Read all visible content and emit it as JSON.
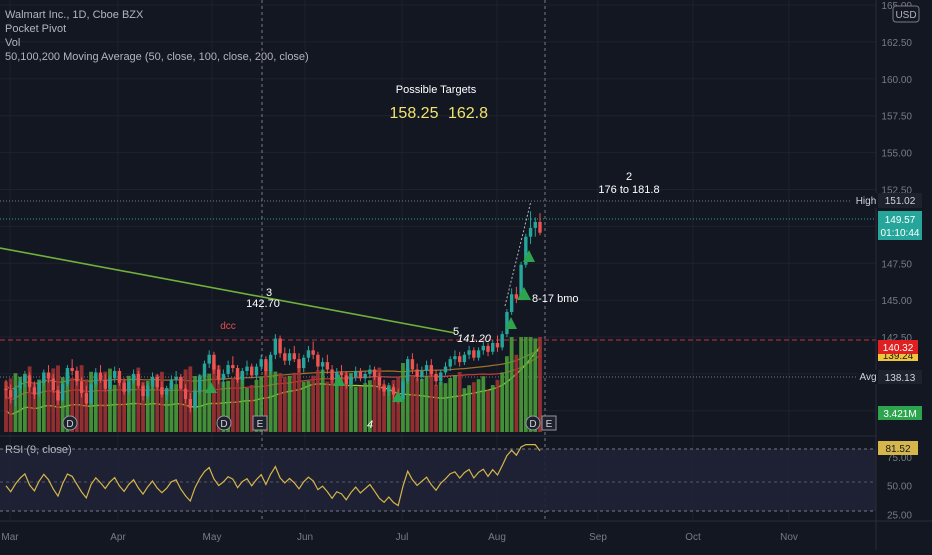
{
  "header": {
    "symbol_line": "Walmart Inc., 1D, Cboe BZX",
    "indicators": [
      "Pocket Pivot",
      "Vol",
      "50,100,200 Moving Average (50, close, 100, close, 200, close)"
    ],
    "currency_button": "USD"
  },
  "rsi_label": "RSI (9, close)",
  "chart_data": {
    "type": "candlestick",
    "symbol": "Walmart Inc.",
    "interval": "1D",
    "exchange": "Cboe BZX",
    "currency": "USD",
    "price_ylim": [
      136.2,
      164.8
    ],
    "price_ticks": [
      "165.00",
      "162.50",
      "160.00",
      "157.50",
      "155.00",
      "152.50",
      "150.00",
      "147.50",
      "145.00",
      "142.50",
      "140.00",
      "137.50"
    ],
    "x_labels": [
      "Mar",
      "Apr",
      "May",
      "Jun",
      "Jul",
      "Aug",
      "Sep",
      "Oct",
      "Nov"
    ],
    "price_readouts": {
      "high_label": "High",
      "high_value": "151.02",
      "last_value": "149.57",
      "countdown": "01:10:44",
      "red_value": "140.32",
      "yellow_value": "139.24",
      "avg_label": "Avg",
      "avg_value": "138.13",
      "volume_value": "3.421M",
      "rsi_value": "81.52"
    },
    "rsi_ticks": [
      "75.00",
      "50.00",
      "25.00"
    ],
    "rsi_ylim": [
      20,
      90
    ],
    "annotations": {
      "targets_title": "Possible Targets",
      "target_1": "158.25",
      "target_2": "162.8",
      "wave_2_label": "2",
      "wave_2_range": "176 to 181.8",
      "wave_3_label": "3",
      "wave_3_price": "142.70",
      "wave_5_label": "5",
      "wave_5_price": "141.20",
      "wave_4_label": "4",
      "dcc_label": "dcc",
      "bmo_label": "8-17 bmo"
    },
    "event_markers": [
      "D",
      "D",
      "E",
      "D",
      "E"
    ],
    "candles": [
      [
        139.0,
        139.6,
        138.3,
        138.9
      ],
      [
        138.9,
        139.3,
        138.0,
        138.4
      ],
      [
        138.4,
        139.2,
        137.8,
        139.0
      ],
      [
        139.0,
        139.8,
        138.7,
        139.5
      ],
      [
        139.5,
        140.2,
        139.1,
        139.9
      ],
      [
        139.9,
        140.1,
        138.8,
        139.1
      ],
      [
        139.1,
        139.5,
        138.3,
        138.6
      ],
      [
        138.6,
        139.6,
        138.4,
        139.4
      ],
      [
        139.4,
        140.3,
        139.2,
        140.1
      ],
      [
        140.1,
        140.6,
        139.4,
        139.7
      ],
      [
        139.7,
        140.0,
        138.7,
        138.9
      ],
      [
        138.9,
        139.2,
        137.9,
        138.2
      ],
      [
        138.2,
        139.5,
        138.1,
        139.3
      ],
      [
        139.3,
        140.6,
        139.1,
        140.4
      ],
      [
        140.4,
        141.0,
        139.9,
        140.2
      ],
      [
        140.2,
        140.5,
        139.2,
        139.5
      ],
      [
        139.5,
        139.8,
        138.4,
        138.7
      ],
      [
        138.7,
        139.2,
        137.8,
        138.0
      ],
      [
        138.0,
        139.5,
        137.9,
        139.3
      ],
      [
        139.3,
        140.4,
        139.1,
        140.1
      ],
      [
        140.1,
        140.6,
        139.4,
        139.6
      ],
      [
        139.6,
        140.0,
        138.8,
        139.0
      ],
      [
        139.0,
        139.9,
        138.7,
        139.7
      ],
      [
        139.7,
        140.5,
        139.4,
        140.2
      ],
      [
        140.2,
        140.4,
        139.2,
        139.4
      ],
      [
        139.4,
        139.7,
        138.6,
        138.8
      ],
      [
        138.8,
        139.7,
        138.6,
        139.5
      ],
      [
        139.5,
        140.3,
        139.3,
        140.0
      ],
      [
        140.0,
        140.2,
        139.0,
        139.2
      ],
      [
        139.2,
        139.4,
        138.2,
        138.5
      ],
      [
        138.5,
        139.4,
        138.3,
        139.2
      ],
      [
        139.2,
        140.1,
        139.0,
        139.8
      ],
      [
        139.8,
        140.0,
        138.9,
        139.1
      ],
      [
        139.1,
        139.5,
        138.4,
        138.6
      ],
      [
        138.6,
        139.2,
        138.2,
        139.0
      ],
      [
        139.0,
        139.9,
        138.8,
        139.6
      ],
      [
        139.6,
        140.2,
        139.3,
        139.8
      ],
      [
        139.8,
        140.0,
        138.9,
        139.0
      ],
      [
        139.0,
        139.3,
        138.0,
        138.3
      ],
      [
        138.3,
        138.7,
        137.4,
        137.7
      ],
      [
        137.7,
        139.0,
        137.5,
        138.8
      ],
      [
        138.8,
        140.0,
        138.6,
        139.8
      ],
      [
        139.8,
        140.9,
        139.6,
        140.7
      ],
      [
        140.7,
        141.6,
        140.4,
        141.3
      ],
      [
        141.3,
        141.5,
        140.0,
        140.3
      ],
      [
        140.3,
        140.6,
        139.3,
        139.6
      ],
      [
        139.6,
        140.3,
        139.1,
        140.0
      ],
      [
        140.0,
        140.9,
        139.8,
        140.6
      ],
      [
        140.6,
        141.2,
        140.1,
        140.4
      ],
      [
        140.4,
        140.6,
        139.4,
        139.6
      ],
      [
        139.6,
        140.4,
        139.3,
        140.2
      ],
      [
        140.2,
        140.9,
        139.9,
        140.5
      ],
      [
        140.5,
        140.7,
        139.7,
        139.9
      ],
      [
        139.9,
        140.7,
        139.6,
        140.5
      ],
      [
        140.5,
        141.3,
        140.2,
        141.0
      ],
      [
        141.0,
        141.2,
        139.9,
        140.2
      ],
      [
        140.2,
        141.5,
        140.0,
        141.3
      ],
      [
        141.3,
        142.7,
        141.0,
        142.4
      ],
      [
        142.4,
        142.6,
        141.1,
        141.4
      ],
      [
        141.4,
        141.8,
        140.6,
        140.9
      ],
      [
        140.9,
        141.7,
        140.6,
        141.4
      ],
      [
        141.4,
        141.9,
        140.8,
        141.0
      ],
      [
        141.0,
        141.4,
        140.1,
        140.4
      ],
      [
        140.4,
        141.3,
        140.1,
        141.1
      ],
      [
        141.1,
        141.9,
        140.8,
        141.6
      ],
      [
        141.6,
        142.2,
        141.0,
        141.3
      ],
      [
        141.3,
        141.5,
        140.2,
        140.5
      ],
      [
        140.5,
        141.1,
        139.9,
        140.8
      ],
      [
        140.8,
        141.3,
        140.0,
        140.3
      ],
      [
        140.3,
        140.6,
        139.3,
        139.6
      ],
      [
        139.6,
        140.4,
        139.2,
        140.1
      ],
      [
        140.1,
        140.6,
        139.6,
        139.9
      ],
      [
        139.9,
        140.2,
        139.0,
        139.3
      ],
      [
        139.3,
        140.0,
        139.0,
        139.8
      ],
      [
        139.8,
        140.5,
        139.5,
        140.2
      ],
      [
        140.2,
        140.4,
        139.5,
        139.7
      ],
      [
        139.7,
        140.2,
        139.3,
        140.0
      ],
      [
        140.0,
        140.6,
        139.7,
        140.3
      ],
      [
        140.3,
        140.5,
        139.6,
        139.8
      ],
      [
        139.8,
        140.1,
        138.9,
        139.2
      ],
      [
        139.2,
        139.6,
        138.5,
        138.8
      ],
      [
        138.8,
        139.4,
        138.5,
        139.1
      ],
      [
        139.1,
        139.3,
        138.3,
        138.6
      ],
      [
        138.6,
        139.0,
        138.0,
        138.3
      ],
      [
        138.3,
        139.7,
        138.2,
        139.5
      ],
      [
        139.5,
        141.2,
        139.3,
        141.0
      ],
      [
        141.0,
        141.4,
        140.0,
        140.3
      ],
      [
        140.3,
        140.7,
        139.5,
        139.8
      ],
      [
        139.8,
        140.5,
        139.5,
        140.2
      ],
      [
        140.2,
        140.9,
        139.9,
        140.6
      ],
      [
        140.6,
        141.0,
        139.8,
        140.0
      ],
      [
        140.0,
        140.3,
        139.2,
        139.5
      ],
      [
        139.5,
        140.3,
        139.2,
        140.1
      ],
      [
        140.1,
        140.8,
        139.9,
        140.5
      ],
      [
        140.5,
        141.2,
        140.2,
        141.0
      ],
      [
        141.0,
        141.6,
        140.6,
        141.2
      ],
      [
        141.2,
        141.5,
        140.5,
        140.8
      ],
      [
        140.8,
        141.5,
        140.6,
        141.3
      ],
      [
        141.3,
        141.9,
        141.0,
        141.6
      ],
      [
        141.6,
        141.8,
        140.9,
        141.1
      ],
      [
        141.1,
        141.8,
        140.9,
        141.6
      ],
      [
        141.6,
        142.2,
        141.3,
        141.9
      ],
      [
        141.9,
        142.1,
        141.2,
        141.5
      ],
      [
        141.5,
        142.3,
        141.3,
        142.1
      ],
      [
        142.1,
        142.6,
        141.5,
        141.8
      ],
      [
        141.8,
        142.9,
        141.6,
        142.7
      ],
      [
        142.7,
        144.4,
        142.5,
        144.2
      ],
      [
        144.2,
        145.8,
        144.0,
        145.4
      ],
      [
        145.4,
        145.9,
        144.8,
        145.1
      ],
      [
        145.1,
        147.6,
        145.0,
        147.4
      ],
      [
        147.4,
        149.5,
        147.2,
        149.3
      ],
      [
        149.3,
        151.02,
        148.8,
        149.9
      ],
      [
        149.9,
        150.6,
        149.3,
        150.3
      ],
      [
        150.3,
        150.9,
        149.4,
        149.57
      ]
    ],
    "ma50_ylim_note": "",
    "volume_note": ""
  }
}
